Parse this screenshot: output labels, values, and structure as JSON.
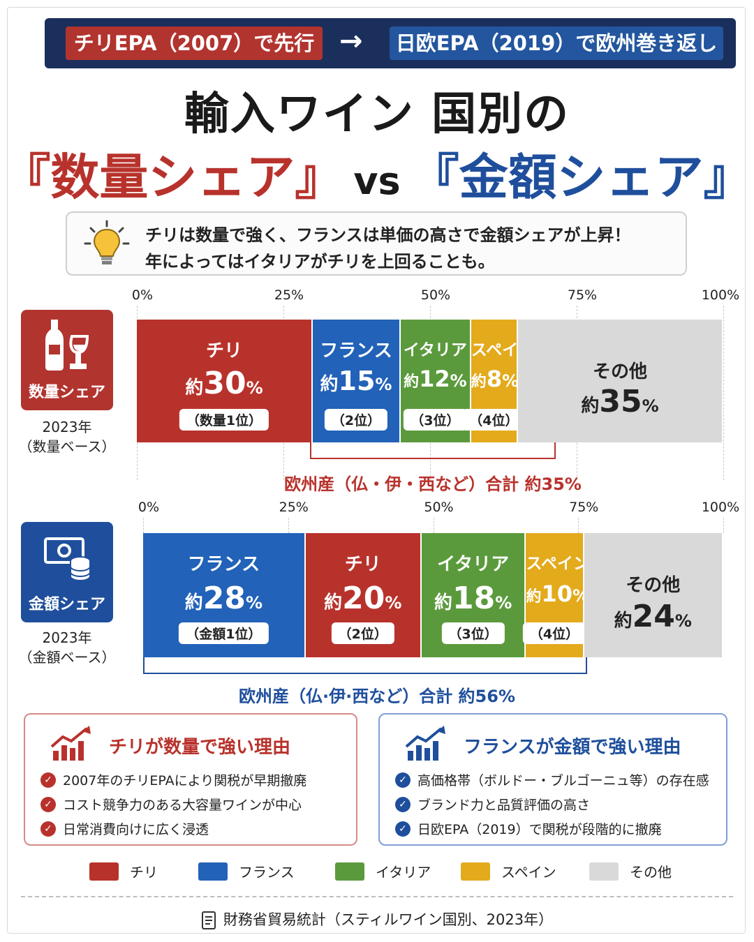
{
  "banner": {
    "left": "チリEPA（2007）で先行",
    "arrow": "→",
    "right": "日欧EPA（2019）で欧州巻き返し"
  },
  "title": {
    "line1": "輸入ワイン 国別の",
    "volume": "『数量シェア』",
    "vs": "vs",
    "value": "『金額シェア』"
  },
  "tip": {
    "line1": "チリは数量で強く、フランスは単価の高さで金額シェアが上昇！",
    "line2": "年によってはイタリアがチリを上回ることも。"
  },
  "volume_panel": {
    "badge": "数量シェア",
    "year_line1": "2023年",
    "year_line2": "（数量ベース）",
    "bracket_label": "欧州産（仏・伊・西など）合計 約35%"
  },
  "value_panel": {
    "badge": "金額シェア",
    "year_line1": "2023年",
    "year_line2": "（金額ベース）",
    "bracket_label": "欧州産（仏·伊·西など）合計 約56%"
  },
  "colors": {
    "chile": "#b8322c",
    "france": "#2262b8",
    "italy": "#5b9a3c",
    "spain": "#e3aa1c",
    "other": "#d9d9d9"
  },
  "chart_data": [
    {
      "type": "bar",
      "stacked": true,
      "orientation": "horizontal",
      "title": "数量シェア",
      "xlim": [
        0,
        100
      ],
      "ticks": [
        "0%",
        "25%",
        "50%",
        "75%",
        "100%"
      ],
      "series": [
        {
          "name": "チリ",
          "value": 30,
          "label_prefix": "約",
          "label_unit": "%",
          "rank": "（数量1位）",
          "color": "#b8322c"
        },
        {
          "name": "フランス",
          "value": 15,
          "label_prefix": "約",
          "label_unit": "%",
          "rank": "（2位）",
          "color": "#2262b8"
        },
        {
          "name": "イタリア",
          "value": 12,
          "label_prefix": "約",
          "label_unit": "%",
          "rank": "（3位）",
          "color": "#5b9a3c"
        },
        {
          "name": "スペイン",
          "value": 8,
          "label_prefix": "約",
          "label_unit": "%",
          "rank": "（4位）",
          "color": "#e3aa1c"
        },
        {
          "name": "その他",
          "value": 35,
          "label_prefix": "約",
          "label_unit": "%",
          "rank": "",
          "color": "#d9d9d9"
        }
      ]
    },
    {
      "type": "bar",
      "stacked": true,
      "orientation": "horizontal",
      "title": "金額シェア",
      "xlim": [
        0,
        100
      ],
      "ticks": [
        "0%",
        "25%",
        "50%",
        "75%",
        "100%"
      ],
      "series": [
        {
          "name": "フランス",
          "value": 28,
          "label_prefix": "約",
          "label_unit": "%",
          "rank": "（金額1位）",
          "color": "#2262b8"
        },
        {
          "name": "チリ",
          "value": 20,
          "label_prefix": "約",
          "label_unit": "%",
          "rank": "（2位）",
          "color": "#b8322c"
        },
        {
          "name": "イタリア",
          "value": 18,
          "label_prefix": "約",
          "label_unit": "%",
          "rank": "（3位）",
          "color": "#5b9a3c"
        },
        {
          "name": "スペイン",
          "value": 10,
          "label_prefix": "約",
          "label_unit": "%",
          "rank": "（4位）",
          "color": "#e3aa1c"
        },
        {
          "name": "その他",
          "value": 24,
          "label_prefix": "約",
          "label_unit": "%",
          "rank": "",
          "color": "#d9d9d9"
        }
      ]
    }
  ],
  "reasons_chile": {
    "title": "チリが数量で強い理由",
    "items": [
      "2007年のチリEPAにより関税が早期撤廃",
      "コスト競争力のある大容量ワインが中心",
      "日常消費向けに広く浸透"
    ]
  },
  "reasons_france": {
    "title": "フランスが金額で強い理由",
    "items": [
      "高価格帯（ボルドー・ブルゴーニュ等）の存在感",
      "ブランド力と品質評価の高さ",
      "日欧EPA（2019）で関税が段階的に撤廃"
    ]
  },
  "legend": [
    "チリ",
    "フランス",
    "イタリア",
    "スペイン",
    "その他"
  ],
  "source": "財務省貿易統計（スティルワイン国別、2023年）"
}
